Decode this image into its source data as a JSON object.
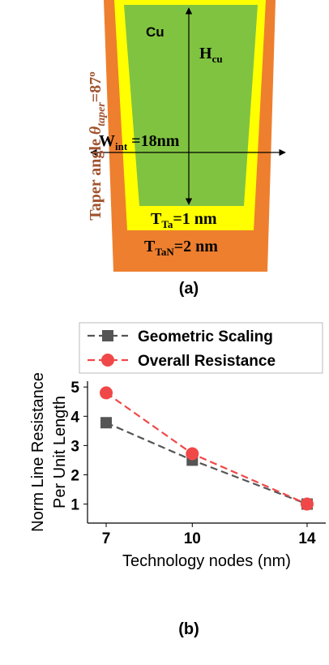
{
  "diagram": {
    "panel_label": "(a)",
    "cu": "Cu",
    "h": {
      "main": "H",
      "sub": "cu"
    },
    "w": {
      "main": "W",
      "sub": "int",
      "rest": " =18nm"
    },
    "t_ta": {
      "main": "T",
      "sub": "Ta",
      "rest": "=1 nm"
    },
    "t_tan": {
      "main": "T",
      "sub": "TaN",
      "rest": "=2 nm"
    },
    "taper": {
      "main": "Taper angle ",
      "symbol": "θ",
      "sub": "taper",
      "rest": "=87",
      "sup": "o"
    }
  },
  "chart_data": {
    "type": "line",
    "panel_label": "(b)",
    "xlabel": "Technology nodes (nm)",
    "ylabel": [
      "Norm Line Resistance",
      "Per Unit Length"
    ],
    "x": [
      7,
      10,
      14
    ],
    "xlim": [
      6.35,
      14.65
    ],
    "xticks": [
      7,
      10,
      14
    ],
    "ylim": [
      0.35,
      5.2
    ],
    "yticks": [
      1,
      2,
      3,
      4,
      5
    ],
    "legend": "upper left",
    "series": [
      {
        "name": "Geometric Scaling",
        "color": "#555555",
        "marker": "square",
        "values": [
          3.78,
          2.5,
          1.0
        ]
      },
      {
        "name": "Overall Resistance",
        "color": "#f04848",
        "marker": "circle",
        "values": [
          4.8,
          2.72,
          1.0
        ]
      }
    ]
  }
}
